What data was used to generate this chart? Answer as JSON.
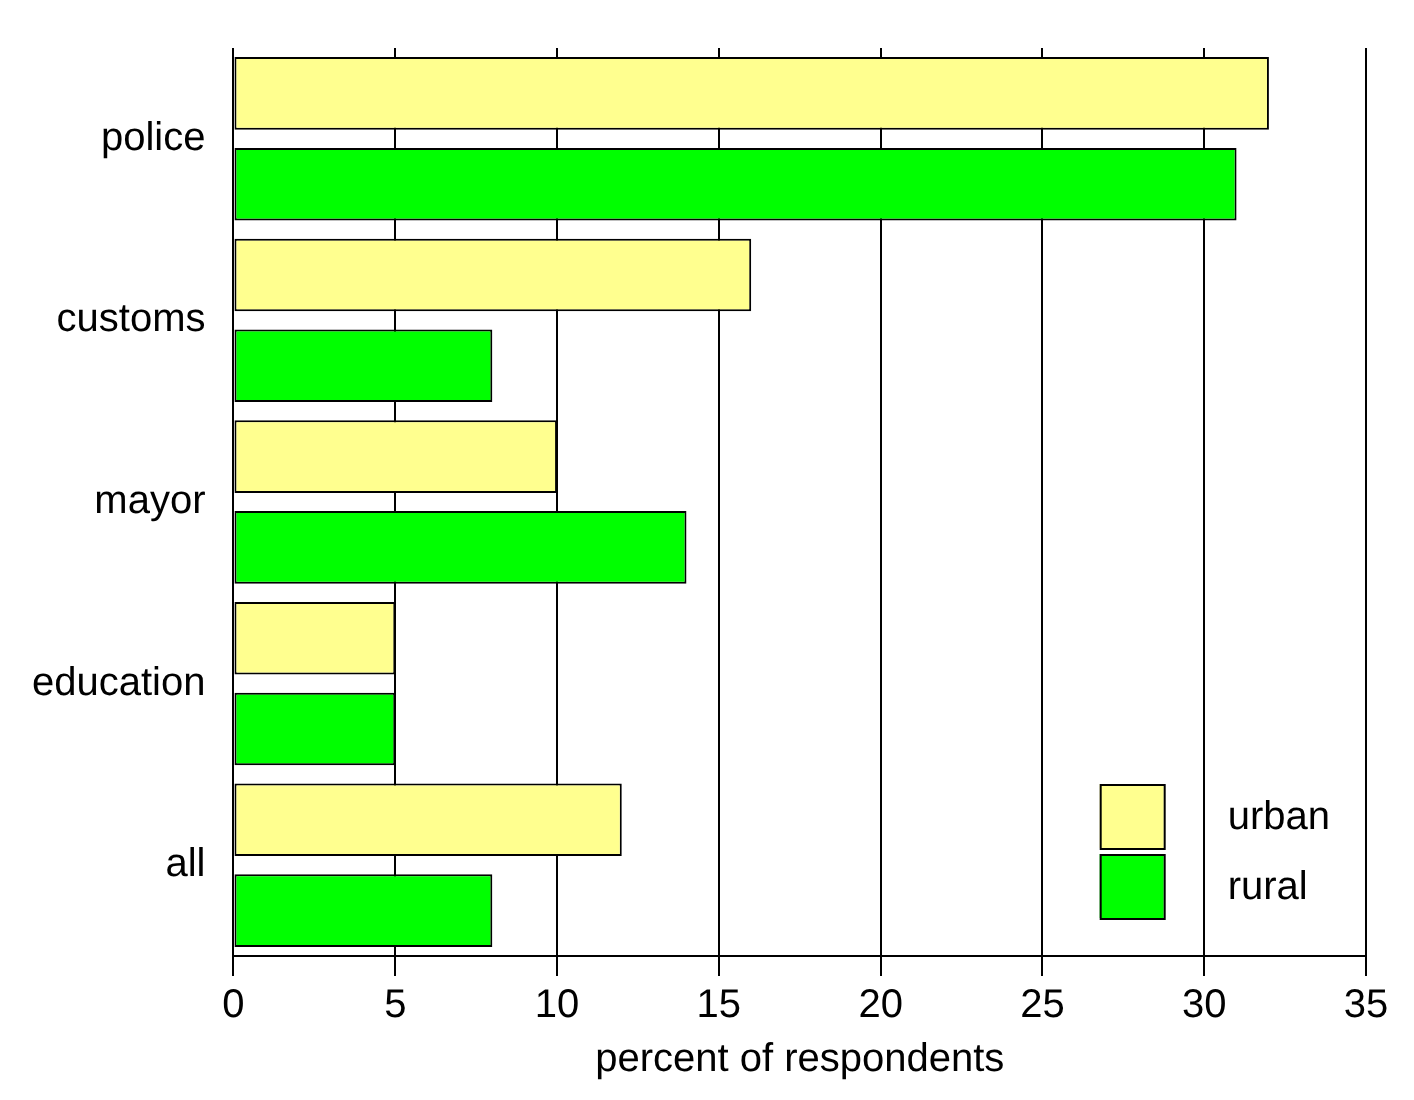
{
  "chart_data": {
    "type": "bar",
    "orientation": "horizontal",
    "categories": [
      "police",
      "customs",
      "mayor",
      "education",
      "all"
    ],
    "series": [
      {
        "name": "urban",
        "color": "#ffff8f",
        "values": [
          32,
          16,
          10,
          5,
          12
        ]
      },
      {
        "name": "rural",
        "color": "#00ff00",
        "values": [
          31,
          8,
          14,
          5,
          8
        ]
      }
    ],
    "xlabel": "percent of respondents",
    "xlim": [
      0,
      35
    ],
    "xticks": [
      0,
      5,
      10,
      15,
      20,
      25,
      30,
      35
    ],
    "grid": "x",
    "legend": "bottom right"
  }
}
